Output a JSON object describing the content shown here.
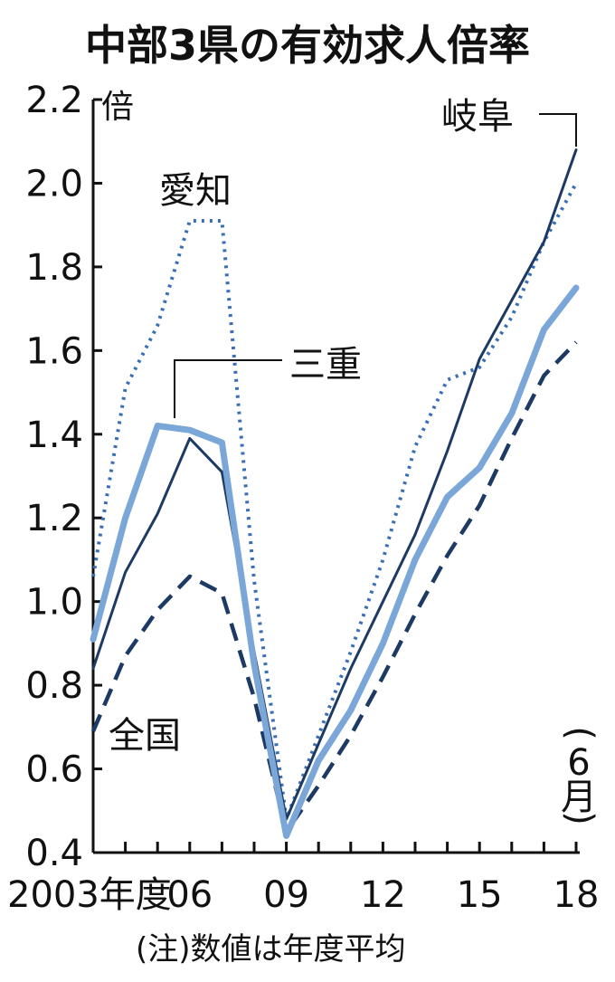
{
  "chart_data": {
    "type": "line",
    "title": "中部3県の有効求人倍率",
    "ylabel": "倍",
    "ylim": [
      0.4,
      2.2
    ],
    "y_ticks": [
      "0.4",
      "0.6",
      "0.8",
      "1.0",
      "1.2",
      "1.4",
      "1.6",
      "1.8",
      "2.0",
      "2.2"
    ],
    "x": [
      "2003",
      "2004",
      "2005",
      "2006",
      "2007",
      "2008",
      "2009",
      "2010",
      "2011",
      "2012",
      "2013",
      "2014",
      "2015",
      "2016",
      "2017",
      "2018"
    ],
    "x_tick_labels": [
      {
        "at": "2003",
        "text": "2003年度"
      },
      {
        "at": "2006",
        "text": "06"
      },
      {
        "at": "2009",
        "text": "09"
      },
      {
        "at": "2012",
        "text": "12"
      },
      {
        "at": "2015",
        "text": "15"
      },
      {
        "at": "2018",
        "text": "18"
      }
    ],
    "last_point_note": "(6月)",
    "footnote": "(注)数値は年度平均",
    "series": [
      {
        "name": "愛知",
        "style": "dotted",
        "color": "#3a6fb6",
        "values": [
          1.06,
          1.51,
          1.66,
          1.91,
          1.91,
          1.05,
          0.48,
          0.68,
          0.88,
          1.1,
          1.37,
          1.53,
          1.56,
          1.68,
          1.86,
          2.0
        ]
      },
      {
        "name": "岐阜",
        "style": "solid",
        "color": "#1c3a63",
        "values": [
          0.84,
          1.07,
          1.21,
          1.39,
          1.31,
          0.88,
          0.48,
          0.66,
          0.84,
          1.0,
          1.16,
          1.36,
          1.58,
          1.72,
          1.86,
          2.08
        ]
      },
      {
        "name": "三重",
        "style": "thick",
        "color": "#7aa6d8",
        "values": [
          0.91,
          1.2,
          1.42,
          1.41,
          1.38,
          0.85,
          0.44,
          0.62,
          0.74,
          0.9,
          1.1,
          1.25,
          1.32,
          1.45,
          1.65,
          1.75
        ]
      },
      {
        "name": "全国",
        "style": "dashed",
        "color": "#1c3a63",
        "values": [
          0.69,
          0.87,
          0.98,
          1.06,
          1.02,
          0.77,
          0.45,
          0.56,
          0.68,
          0.82,
          0.97,
          1.11,
          1.23,
          1.39,
          1.54,
          1.62
        ]
      }
    ]
  }
}
